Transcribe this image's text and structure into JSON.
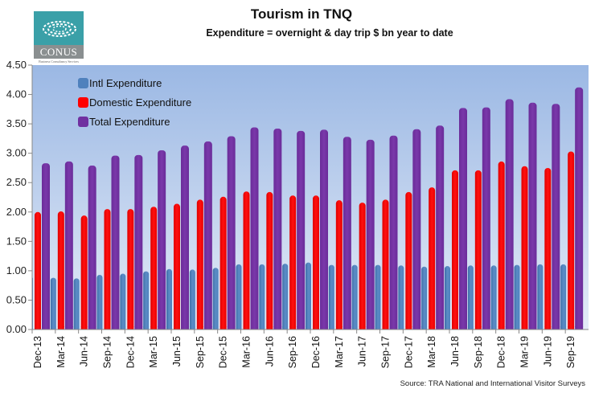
{
  "logo": {
    "name": "CONUS",
    "tagline": "Business Consultancy Services"
  },
  "source_note": "Source: TRA National and International Visitor Surveys",
  "colors": {
    "intl": "#4f81bd",
    "domestic": "#ff0000",
    "total": "#7030a0",
    "plot_bg_top": "#9bb8e4",
    "plot_bg_bottom": "#e4ebf7",
    "logo_teal": "#3aa0a8",
    "logo_grey": "#8a8f90"
  },
  "chart_data": {
    "type": "bar",
    "title": "Tourism in TNQ",
    "subtitle": "Expenditure = overnight & day trip $ bn year to date",
    "xlabel": "",
    "ylabel": "",
    "ylim": [
      0,
      4.5
    ],
    "yticks": [
      "0.00",
      "0.50",
      "1.00",
      "1.50",
      "2.00",
      "2.50",
      "3.00",
      "3.50",
      "4.00",
      "4.50"
    ],
    "grid": false,
    "legend_position": "top-left",
    "categories": [
      "Dec-13",
      "Mar-14",
      "Jun-14",
      "Sep-14",
      "Dec-14",
      "Mar-15",
      "Jun-15",
      "Sep-15",
      "Dec-15",
      "Mar-16",
      "Jun-16",
      "Sep-16",
      "Dec-16",
      "Mar-17",
      "Jun-17",
      "Sep-17",
      "Dec-17",
      "Mar-18",
      "Jun-18",
      "Sep-18",
      "Dec-18",
      "Mar-19",
      "Jun-19",
      "Sep-19"
    ],
    "series": [
      {
        "name": "Intl Expenditure",
        "values": [
          0.88,
          0.88,
          0.87,
          0.93,
          0.95,
          0.99,
          1.03,
          1.02,
          1.05,
          1.11,
          1.11,
          1.12,
          1.14,
          1.1,
          1.1,
          1.1,
          1.09,
          1.07,
          1.08,
          1.09,
          1.09,
          1.1,
          1.11,
          1.11
        ]
      },
      {
        "name": "Domestic Expenditure",
        "values": [
          2.0,
          2.01,
          1.94,
          2.05,
          2.05,
          2.09,
          2.14,
          2.21,
          2.26,
          2.35,
          2.34,
          2.28,
          2.28,
          2.2,
          2.16,
          2.21,
          2.34,
          2.42,
          2.71,
          2.71,
          2.86,
          2.78,
          2.75,
          3.03
        ]
      },
      {
        "name": "Total Expenditure",
        "values": [
          2.83,
          2.86,
          2.79,
          2.96,
          2.97,
          3.05,
          3.13,
          3.2,
          3.29,
          3.44,
          3.42,
          3.38,
          3.4,
          3.28,
          3.23,
          3.3,
          3.41,
          3.47,
          3.77,
          3.78,
          3.92,
          3.86,
          3.84,
          4.12
        ]
      }
    ]
  }
}
